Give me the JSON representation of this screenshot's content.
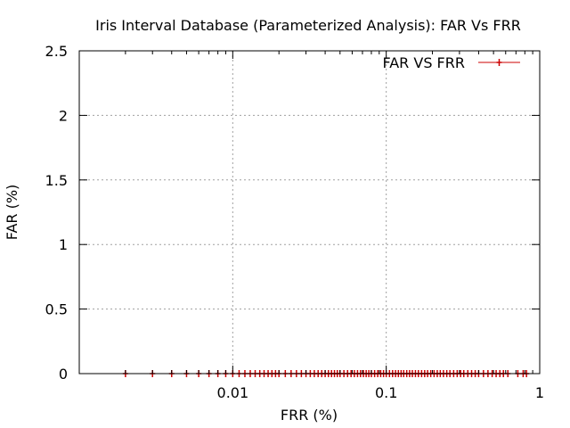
{
  "chart_data": {
    "type": "scatter",
    "title": "Iris Interval Database (Parameterized Analysis): FAR Vs FRR",
    "xlabel": "FRR (%)",
    "ylabel": "FAR (%)",
    "xscale": "log",
    "xlim": [
      0.001,
      1
    ],
    "ylim": [
      0,
      2.5
    ],
    "grid": true,
    "legend_position": "top-right",
    "x_tick_labels": [
      "0.01",
      "0.1",
      "1"
    ],
    "y_tick_labels": [
      "0",
      "0.5",
      "1",
      "1.5",
      "2",
      "2.5"
    ],
    "series": [
      {
        "name": "FAR VS FRR",
        "color": "#cc0000",
        "marker": "plus",
        "line": true,
        "points": [
          {
            "x": 0.002,
            "y": 0
          },
          {
            "x": 0.003,
            "y": 0
          },
          {
            "x": 0.004,
            "y": 0
          },
          {
            "x": 0.005,
            "y": 0
          },
          {
            "x": 0.006,
            "y": 0
          },
          {
            "x": 0.007,
            "y": 0
          },
          {
            "x": 0.008,
            "y": 0
          },
          {
            "x": 0.009,
            "y": 0
          },
          {
            "x": 0.01,
            "y": 0
          },
          {
            "x": 0.011,
            "y": 0
          },
          {
            "x": 0.012,
            "y": 0
          },
          {
            "x": 0.013,
            "y": 0
          },
          {
            "x": 0.014,
            "y": 0
          },
          {
            "x": 0.015,
            "y": 0
          },
          {
            "x": 0.016,
            "y": 0
          },
          {
            "x": 0.017,
            "y": 0
          },
          {
            "x": 0.018,
            "y": 0
          },
          {
            "x": 0.019,
            "y": 0
          },
          {
            "x": 0.02,
            "y": 0
          },
          {
            "x": 0.022,
            "y": 0
          },
          {
            "x": 0.024,
            "y": 0
          },
          {
            "x": 0.026,
            "y": 0
          },
          {
            "x": 0.028,
            "y": 0
          },
          {
            "x": 0.03,
            "y": 0
          },
          {
            "x": 0.032,
            "y": 0
          },
          {
            "x": 0.034,
            "y": 0
          },
          {
            "x": 0.036,
            "y": 0
          },
          {
            "x": 0.038,
            "y": 0
          },
          {
            "x": 0.04,
            "y": 0
          },
          {
            "x": 0.042,
            "y": 0
          },
          {
            "x": 0.044,
            "y": 0
          },
          {
            "x": 0.046,
            "y": 0
          },
          {
            "x": 0.048,
            "y": 0
          },
          {
            "x": 0.05,
            "y": 0
          },
          {
            "x": 0.053,
            "y": 0
          },
          {
            "x": 0.056,
            "y": 0
          },
          {
            "x": 0.059,
            "y": 0
          },
          {
            "x": 0.062,
            "y": 0
          },
          {
            "x": 0.065,
            "y": 0
          },
          {
            "x": 0.068,
            "y": 0
          },
          {
            "x": 0.071,
            "y": 0
          },
          {
            "x": 0.074,
            "y": 0
          },
          {
            "x": 0.077,
            "y": 0
          },
          {
            "x": 0.08,
            "y": 0
          },
          {
            "x": 0.084,
            "y": 0
          },
          {
            "x": 0.088,
            "y": 0
          },
          {
            "x": 0.092,
            "y": 0
          },
          {
            "x": 0.096,
            "y": 0
          },
          {
            "x": 0.1,
            "y": 0
          },
          {
            "x": 0.105,
            "y": 0
          },
          {
            "x": 0.11,
            "y": 0
          },
          {
            "x": 0.115,
            "y": 0
          },
          {
            "x": 0.12,
            "y": 0
          },
          {
            "x": 0.125,
            "y": 0
          },
          {
            "x": 0.13,
            "y": 0
          },
          {
            "x": 0.136,
            "y": 0
          },
          {
            "x": 0.142,
            "y": 0
          },
          {
            "x": 0.148,
            "y": 0
          },
          {
            "x": 0.155,
            "y": 0
          },
          {
            "x": 0.162,
            "y": 0
          },
          {
            "x": 0.17,
            "y": 0
          },
          {
            "x": 0.178,
            "y": 0
          },
          {
            "x": 0.186,
            "y": 0
          },
          {
            "x": 0.195,
            "y": 0
          },
          {
            "x": 0.205,
            "y": 0
          },
          {
            "x": 0.215,
            "y": 0
          },
          {
            "x": 0.225,
            "y": 0
          },
          {
            "x": 0.236,
            "y": 0
          },
          {
            "x": 0.248,
            "y": 0
          },
          {
            "x": 0.26,
            "y": 0
          },
          {
            "x": 0.275,
            "y": 0
          },
          {
            "x": 0.29,
            "y": 0
          },
          {
            "x": 0.305,
            "y": 0
          },
          {
            "x": 0.32,
            "y": 0
          },
          {
            "x": 0.34,
            "y": 0
          },
          {
            "x": 0.36,
            "y": 0
          },
          {
            "x": 0.38,
            "y": 0
          },
          {
            "x": 0.4,
            "y": 0
          },
          {
            "x": 0.43,
            "y": 0
          },
          {
            "x": 0.46,
            "y": 0
          },
          {
            "x": 0.49,
            "y": 0
          },
          {
            "x": 0.52,
            "y": 0
          },
          {
            "x": 0.55,
            "y": 0
          },
          {
            "x": 0.58,
            "y": 0
          },
          {
            "x": 0.62,
            "y": 0
          },
          {
            "x": 0.72,
            "y": 0
          },
          {
            "x": 0.78,
            "y": 0
          },
          {
            "x": 0.82,
            "y": 0
          }
        ]
      }
    ]
  }
}
